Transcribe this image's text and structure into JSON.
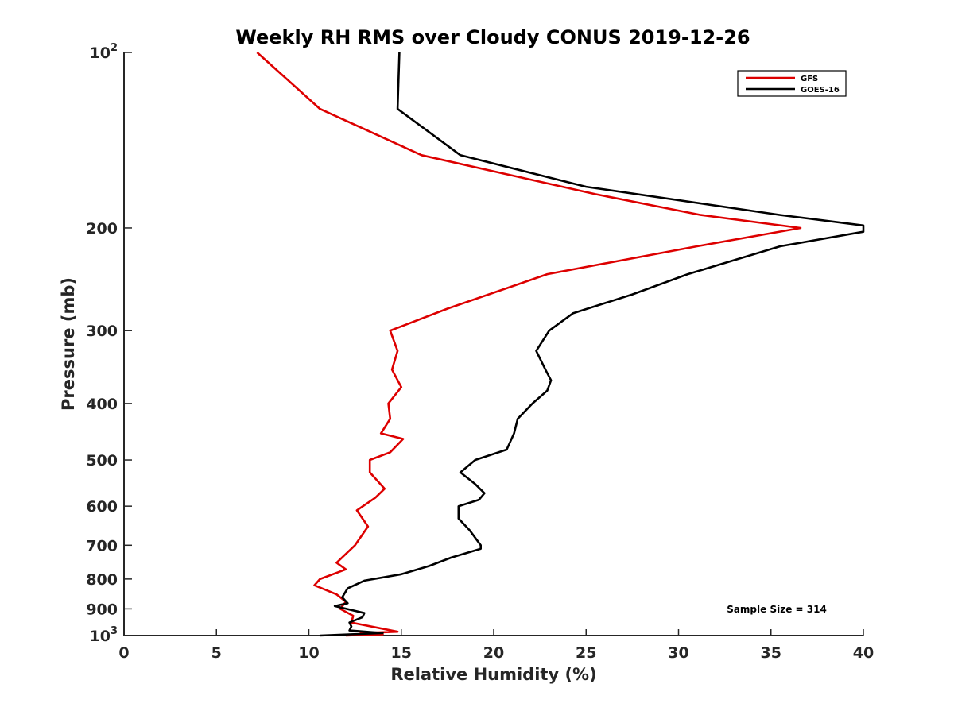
{
  "chart_data": {
    "type": "line",
    "title": "Weekly RH RMS over Cloudy CONUS 2019-12-26",
    "xlabel": "Relative Humidity (%)",
    "ylabel": "Pressure (mb)",
    "xlim": [
      0,
      40
    ],
    "ylim": [
      100,
      1000
    ],
    "y_scale": "log",
    "y_reversed": true,
    "grid": false,
    "legend_position": "top-right",
    "x_ticks": [
      {
        "value": 0,
        "label": "0"
      },
      {
        "value": 5,
        "label": "5"
      },
      {
        "value": 10,
        "label": "10"
      },
      {
        "value": 15,
        "label": "15"
      },
      {
        "value": 20,
        "label": "20"
      },
      {
        "value": 25,
        "label": "25"
      },
      {
        "value": 30,
        "label": "30"
      },
      {
        "value": 35,
        "label": "35"
      },
      {
        "value": 40,
        "label": "40"
      }
    ],
    "y_ticks": [
      {
        "value": 100,
        "base": "10",
        "exp": "2"
      },
      {
        "value": 200,
        "base": "200",
        "exp": ""
      },
      {
        "value": 300,
        "base": "300",
        "exp": ""
      },
      {
        "value": 400,
        "base": "400",
        "exp": ""
      },
      {
        "value": 500,
        "base": "500",
        "exp": ""
      },
      {
        "value": 600,
        "base": "600",
        "exp": ""
      },
      {
        "value": 700,
        "base": "700",
        "exp": ""
      },
      {
        "value": 800,
        "base": "800",
        "exp": ""
      },
      {
        "value": 900,
        "base": "900",
        "exp": ""
      },
      {
        "value": 1000,
        "base": "10",
        "exp": "3"
      }
    ],
    "series": [
      {
        "name": "GFS",
        "color": "#dd0000",
        "points": [
          [
            7.2,
            100
          ],
          [
            10.6,
            125
          ],
          [
            16.1,
            150
          ],
          [
            25.5,
            175
          ],
          [
            31.2,
            190
          ],
          [
            36.6,
            200
          ],
          [
            31.0,
            215
          ],
          [
            22.9,
            240
          ],
          [
            17.5,
            275
          ],
          [
            14.4,
            300
          ],
          [
            14.8,
            325
          ],
          [
            14.5,
            350
          ],
          [
            15.0,
            375
          ],
          [
            14.3,
            400
          ],
          [
            14.4,
            425
          ],
          [
            13.9,
            450
          ],
          [
            15.1,
            460
          ],
          [
            14.4,
            485
          ],
          [
            13.3,
            500
          ],
          [
            13.3,
            525
          ],
          [
            14.1,
            560
          ],
          [
            13.6,
            580
          ],
          [
            12.6,
            610
          ],
          [
            13.2,
            650
          ],
          [
            12.5,
            700
          ],
          [
            11.5,
            750
          ],
          [
            12.0,
            770
          ],
          [
            10.6,
            800
          ],
          [
            10.3,
            820
          ],
          [
            11.5,
            850
          ],
          [
            12.0,
            875
          ],
          [
            11.7,
            900
          ],
          [
            12.4,
            925
          ],
          [
            12.3,
            950
          ],
          [
            14.8,
            985
          ],
          [
            12.8,
            990
          ],
          [
            14.0,
            995
          ],
          [
            12.0,
            1000
          ]
        ]
      },
      {
        "name": "GOES-16",
        "color": "#000000",
        "points": [
          [
            14.9,
            100
          ],
          [
            14.8,
            125
          ],
          [
            18.2,
            150
          ],
          [
            25.0,
            170
          ],
          [
            35.5,
            190
          ],
          [
            40.0,
            198
          ],
          [
            40.0,
            203
          ],
          [
            35.5,
            215
          ],
          [
            30.5,
            240
          ],
          [
            27.5,
            260
          ],
          [
            24.3,
            280
          ],
          [
            23.0,
            300
          ],
          [
            22.3,
            325
          ],
          [
            22.8,
            350
          ],
          [
            23.1,
            365
          ],
          [
            22.9,
            380
          ],
          [
            22.1,
            400
          ],
          [
            21.3,
            425
          ],
          [
            21.1,
            450
          ],
          [
            20.7,
            480
          ],
          [
            19.0,
            500
          ],
          [
            18.2,
            525
          ],
          [
            19.0,
            550
          ],
          [
            19.5,
            570
          ],
          [
            19.2,
            585
          ],
          [
            18.1,
            600
          ],
          [
            18.1,
            630
          ],
          [
            18.7,
            660
          ],
          [
            19.3,
            700
          ],
          [
            19.3,
            710
          ],
          [
            17.7,
            735
          ],
          [
            16.5,
            760
          ],
          [
            15.0,
            785
          ],
          [
            13.0,
            805
          ],
          [
            12.1,
            830
          ],
          [
            11.8,
            860
          ],
          [
            12.1,
            880
          ],
          [
            11.4,
            890
          ],
          [
            13.0,
            915
          ],
          [
            12.9,
            930
          ],
          [
            12.2,
            950
          ],
          [
            12.3,
            965
          ],
          [
            12.2,
            980
          ],
          [
            14.0,
            990
          ],
          [
            10.6,
            1000
          ]
        ]
      }
    ],
    "annotations": [
      {
        "text": "Sample Size = 314"
      }
    ]
  }
}
